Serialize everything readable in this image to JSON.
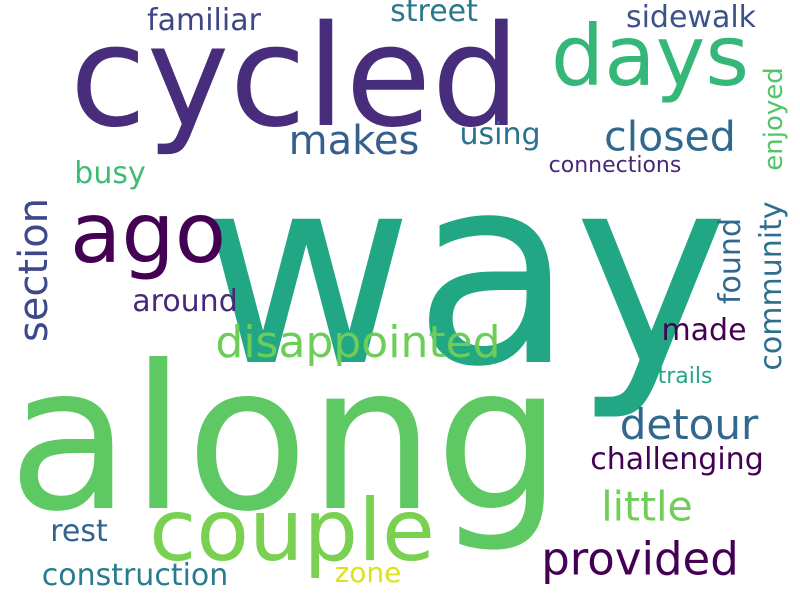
{
  "words": [
    {
      "text": "way",
      "color": "#22a784",
      "orientation": "horizontal"
    },
    {
      "text": "along",
      "color": "#5ec962",
      "orientation": "horizontal"
    },
    {
      "text": "cycled",
      "color": "#472d7b",
      "orientation": "horizontal"
    },
    {
      "text": "days",
      "color": "#35b779",
      "orientation": "horizontal"
    },
    {
      "text": "couple",
      "color": "#7ad151",
      "orientation": "horizontal"
    },
    {
      "text": "ago",
      "color": "#440154",
      "orientation": "horizontal"
    },
    {
      "text": "disappointed",
      "color": "#6cce59",
      "orientation": "horizontal"
    },
    {
      "text": "provided",
      "color": "#440154",
      "orientation": "horizontal"
    },
    {
      "text": "closed",
      "color": "#31688e",
      "orientation": "horizontal"
    },
    {
      "text": "detour",
      "color": "#31688e",
      "orientation": "horizontal"
    },
    {
      "text": "makes",
      "color": "#355f8d",
      "orientation": "horizontal"
    },
    {
      "text": "section",
      "color": "#3e4989",
      "orientation": "vertical"
    },
    {
      "text": "little",
      "color": "#6ece58",
      "orientation": "horizontal"
    },
    {
      "text": "challenging",
      "color": "#440154",
      "orientation": "horizontal"
    },
    {
      "text": "community",
      "color": "#2e6f8e",
      "orientation": "vertical"
    },
    {
      "text": "construction",
      "color": "#287c8e",
      "orientation": "horizontal"
    },
    {
      "text": "familiar",
      "color": "#3f4788",
      "orientation": "horizontal"
    },
    {
      "text": "around",
      "color": "#482878",
      "orientation": "horizontal"
    },
    {
      "text": "enjoyed",
      "color": "#52c569",
      "orientation": "vertical"
    },
    {
      "text": "found",
      "color": "#31688e",
      "orientation": "vertical"
    },
    {
      "text": "made",
      "color": "#440154",
      "orientation": "horizontal"
    },
    {
      "text": "sidewalk",
      "color": "#3b528b",
      "orientation": "horizontal"
    },
    {
      "text": "using",
      "color": "#2c728e",
      "orientation": "horizontal"
    },
    {
      "text": "street",
      "color": "#2a788e",
      "orientation": "horizontal"
    },
    {
      "text": "rest",
      "color": "#33638d",
      "orientation": "horizontal"
    },
    {
      "text": "busy",
      "color": "#3fbc73",
      "orientation": "horizontal"
    },
    {
      "text": "zone",
      "color": "#dde318",
      "orientation": "horizontal"
    },
    {
      "text": "connections",
      "color": "#482878",
      "orientation": "horizontal"
    },
    {
      "text": "trails",
      "color": "#22a785",
      "orientation": "horizontal"
    }
  ]
}
